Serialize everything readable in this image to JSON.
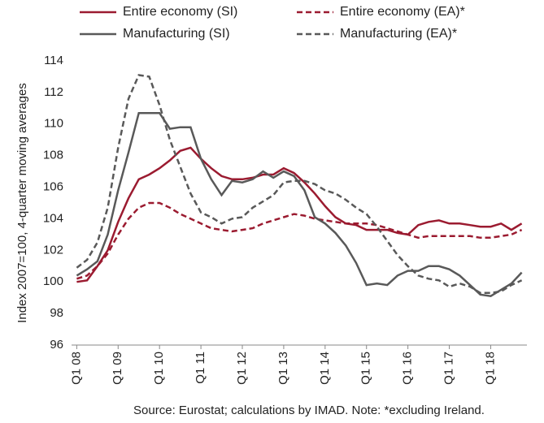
{
  "chart_data": {
    "type": "line",
    "y_label": "Index 2007=100, 4-quarter moving averages",
    "source": "Source: Eurostat; calculations by IMAD. Note: *excluding Ireland.",
    "categories": [
      "Q1 08",
      null,
      null,
      null,
      "Q1 09",
      null,
      null,
      null,
      "Q1 10",
      null,
      null,
      null,
      "Q1 11",
      null,
      null,
      null,
      "Q1 12",
      null,
      null,
      null,
      "Q1 13",
      null,
      null,
      null,
      "Q1 14",
      null,
      null,
      null,
      "Q1 15",
      null,
      null,
      null,
      "Q1 16",
      null,
      null,
      null,
      "Q1 17",
      null,
      null,
      null,
      "Q1 18",
      null,
      null,
      null
    ],
    "ylim": [
      96,
      114
    ],
    "yticks": [
      96,
      98,
      100,
      102,
      104,
      106,
      108,
      110,
      112,
      114
    ],
    "grid": false,
    "series": [
      {
        "name": "Entire economy (SI)",
        "color": "#9b1b30",
        "dash": false,
        "values": [
          100.0,
          100.1,
          101.0,
          102.0,
          103.8,
          105.3,
          106.5,
          106.8,
          107.2,
          107.7,
          108.3,
          108.5,
          107.8,
          107.2,
          106.7,
          106.5,
          106.5,
          106.6,
          106.8,
          106.8,
          107.2,
          106.9,
          106.3,
          105.6,
          104.8,
          104.1,
          103.7,
          103.6,
          103.3,
          103.3,
          103.3,
          103.1,
          103.0,
          103.6,
          103.8,
          103.9,
          103.7,
          103.7,
          103.6,
          103.5,
          103.5,
          103.7,
          103.3,
          103.7
        ]
      },
      {
        "name": "Entire economy (EA)*",
        "color": "#9b1b30",
        "dash": true,
        "values": [
          100.2,
          100.4,
          101.0,
          101.8,
          103.0,
          104.0,
          104.7,
          105.0,
          105.0,
          104.7,
          104.3,
          104.0,
          103.7,
          103.4,
          103.3,
          103.2,
          103.3,
          103.4,
          103.7,
          103.9,
          104.1,
          104.3,
          104.2,
          104.0,
          103.9,
          103.8,
          103.7,
          103.7,
          103.7,
          103.6,
          103.4,
          103.2,
          103.0,
          102.8,
          102.9,
          102.9,
          102.9,
          102.9,
          102.9,
          102.8,
          102.8,
          102.9,
          103.0,
          103.3
        ]
      },
      {
        "name": "Manufacturing (SI)",
        "color": "#595959",
        "dash": false,
        "values": [
          100.4,
          100.8,
          101.3,
          103.0,
          105.8,
          108.2,
          110.7,
          110.7,
          110.7,
          109.7,
          109.8,
          109.8,
          107.8,
          106.5,
          105.5,
          106.4,
          106.3,
          106.5,
          107.0,
          106.6,
          107.0,
          106.7,
          105.8,
          104.1,
          103.7,
          103.1,
          102.3,
          101.2,
          99.8,
          99.9,
          99.8,
          100.4,
          100.7,
          100.7,
          101.0,
          101.0,
          100.8,
          100.4,
          99.8,
          99.2,
          99.1,
          99.5,
          99.9,
          100.6
        ]
      },
      {
        "name": "Manufacturing (EA)*",
        "color": "#595959",
        "dash": true,
        "values": [
          100.9,
          101.4,
          102.5,
          104.7,
          108.5,
          111.6,
          113.1,
          113.0,
          111.2,
          109.0,
          107.3,
          105.6,
          104.4,
          104.1,
          103.7,
          104.0,
          104.1,
          104.7,
          105.1,
          105.5,
          106.3,
          106.4,
          106.4,
          106.2,
          105.8,
          105.6,
          105.2,
          104.7,
          104.3,
          103.5,
          102.6,
          101.7,
          101.0,
          100.4,
          100.2,
          100.1,
          99.7,
          99.9,
          99.7,
          99.3,
          99.3,
          99.4,
          99.8,
          100.1
        ]
      }
    ]
  }
}
